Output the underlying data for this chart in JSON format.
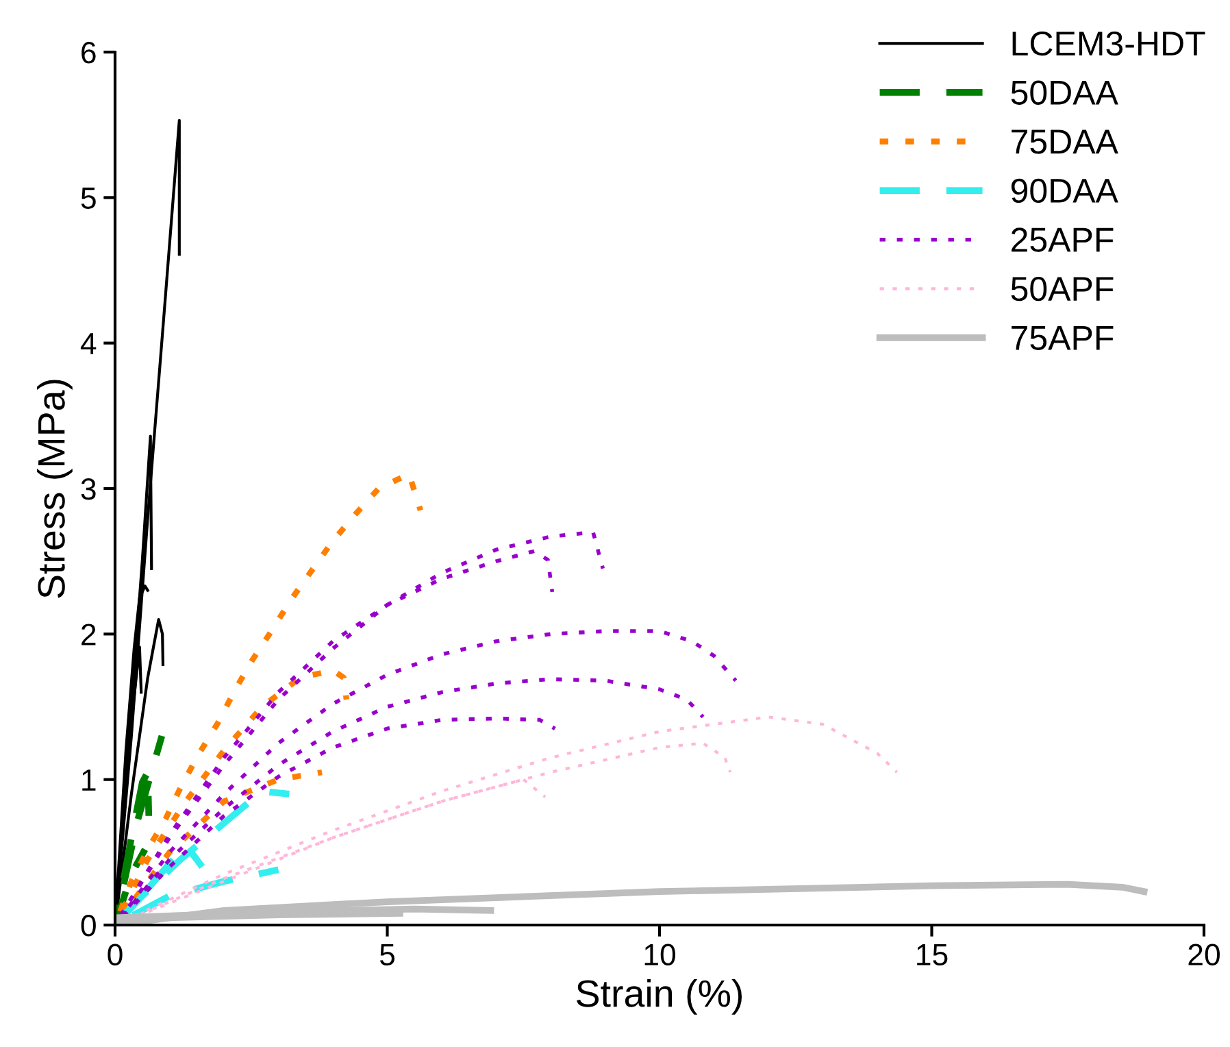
{
  "chart_data": {
    "type": "line",
    "xlabel": "Strain (%)",
    "ylabel": "Stress (MPa)",
    "xlim": [
      0,
      20
    ],
    "ylim": [
      0,
      6
    ],
    "xticks": [
      0,
      5,
      10,
      15,
      20
    ],
    "yticks": [
      0,
      1,
      2,
      3,
      4,
      5,
      6
    ],
    "grid": false,
    "legend": "top right",
    "marker": "none",
    "series": [
      {
        "name": "LCEM3-HDT",
        "color": "#000000",
        "line_style": "solid",
        "x": [
          0,
          0.3,
          0.6,
          0.9,
          1.18,
          1.18
        ],
        "values": [
          0,
          1.3,
          2.8,
          4.2,
          5.53,
          4.61
        ]
      },
      {
        "color": "#000000",
        "line_style": "solid",
        "x": [
          0,
          0.3,
          0.5,
          0.65,
          0.67
        ],
        "values": [
          0,
          1.5,
          2.5,
          3.36,
          2.45
        ]
      },
      {
        "color": "#000000",
        "line_style": "solid",
        "x": [
          0,
          0.2,
          0.35,
          0.45,
          0.55,
          0.6
        ],
        "values": [
          0,
          1.2,
          1.9,
          2.25,
          2.33,
          2.3
        ]
      },
      {
        "color": "#000000",
        "line_style": "solid",
        "x": [
          0,
          0.3,
          0.6,
          0.8,
          0.87,
          0.88
        ],
        "values": [
          0,
          0.9,
          1.7,
          2.1,
          2.0,
          1.79
        ]
      },
      {
        "color": "#000000",
        "line_style": "solid",
        "x": [
          0,
          0.3,
          0.45,
          0.48
        ],
        "values": [
          0,
          1.4,
          1.91,
          1.6
        ]
      },
      {
        "name": "50DAA",
        "color": "#008000",
        "line_style": "dashed",
        "x": [
          0,
          0.3,
          0.5,
          0.6,
          0.62
        ],
        "values": [
          0,
          0.6,
          0.98,
          1.05,
          0.75
        ]
      },
      {
        "color": "#008000",
        "line_style": "dashed",
        "x": [
          0,
          0.3,
          0.55
        ],
        "values": [
          0,
          0.35,
          0.52
        ]
      },
      {
        "color": "#008000",
        "line_style": "dashed",
        "x": [
          0,
          0.4,
          0.86
        ],
        "values": [
          0,
          0.7,
          1.3
        ]
      },
      {
        "name": "75DAA",
        "color": "#ff7f00",
        "line_style": "dotted",
        "x": [
          0,
          0.3,
          0.6,
          0.93,
          1.21,
          1.53,
          1.89,
          2.21,
          2.52,
          2.87,
          3.24,
          3.6,
          4.0,
          4.43,
          4.84,
          5.4,
          5.61
        ],
        "values": [
          0,
          0.3,
          0.52,
          0.73,
          0.95,
          1.17,
          1.39,
          1.62,
          1.82,
          2.02,
          2.24,
          2.43,
          2.64,
          2.83,
          3.0,
          3.1,
          2.85
        ]
      },
      {
        "color": "#ff7f00",
        "line_style": "dotted",
        "x": [
          0,
          0.6,
          1.3,
          2.0,
          2.7,
          3.4,
          4.0,
          4.2,
          4.25
        ],
        "values": [
          0,
          0.45,
          0.85,
          1.2,
          1.5,
          1.7,
          1.75,
          1.7,
          1.55
        ]
      },
      {
        "color": "#ff7f00",
        "line_style": "dotted",
        "x": [
          0,
          1,
          2,
          3,
          3.8
        ],
        "values": [
          0,
          0.5,
          0.85,
          1.0,
          1.05
        ]
      },
      {
        "name": "90DAA",
        "color": "#33eeee",
        "line_style": "dashed",
        "x": [
          0,
          0.5,
          1.2,
          2.0,
          2.7,
          3.2
        ],
        "values": [
          0,
          0.2,
          0.45,
          0.7,
          0.92,
          0.9
        ]
      },
      {
        "color": "#33eeee",
        "line_style": "dashed",
        "x": [
          0,
          0.6,
          1.3,
          1.5,
          1.6
        ],
        "values": [
          0,
          0.25,
          0.55,
          0.45,
          0.4
        ]
      },
      {
        "color": "#33eeee",
        "line_style": "dashed",
        "x": [
          0,
          1,
          2,
          3
        ],
        "values": [
          0,
          0.2,
          0.3,
          0.38
        ]
      },
      {
        "name": "25APF",
        "color": "#9900cc",
        "line_style": "dotted",
        "x": [
          0,
          1,
          2,
          3,
          4,
          5,
          6,
          7,
          8,
          8.78,
          8.96
        ],
        "values": [
          0,
          0.6,
          1.1,
          1.55,
          1.9,
          2.2,
          2.42,
          2.58,
          2.67,
          2.7,
          2.45
        ]
      },
      {
        "color": "#9900cc",
        "line_style": "dotted",
        "x": [
          0,
          1,
          2,
          3,
          4,
          5,
          6,
          7,
          7.7,
          7.95,
          8.03
        ],
        "values": [
          0,
          0.62,
          1.15,
          1.6,
          1.95,
          2.2,
          2.38,
          2.5,
          2.57,
          2.51,
          2.29
        ]
      },
      {
        "color": "#9900cc",
        "line_style": "dotted",
        "x": [
          0,
          1,
          2,
          3,
          4,
          5,
          6,
          7,
          8,
          9,
          10,
          10.6,
          11.0,
          11.4
        ],
        "values": [
          0,
          0.5,
          0.9,
          1.25,
          1.52,
          1.72,
          1.86,
          1.95,
          2.0,
          2.02,
          2.02,
          1.95,
          1.85,
          1.68
        ]
      },
      {
        "color": "#9900cc",
        "line_style": "dotted",
        "x": [
          0,
          1,
          2,
          3,
          4,
          5,
          6,
          7,
          8,
          9,
          10,
          10.5,
          10.8
        ],
        "values": [
          0,
          0.45,
          0.8,
          1.1,
          1.33,
          1.5,
          1.6,
          1.66,
          1.69,
          1.68,
          1.62,
          1.55,
          1.43
        ]
      },
      {
        "color": "#9900cc",
        "line_style": "dotted",
        "x": [
          0,
          1,
          2,
          3,
          4,
          5,
          6,
          7,
          7.8,
          8.08
        ],
        "values": [
          0,
          0.4,
          0.75,
          1.02,
          1.22,
          1.35,
          1.41,
          1.42,
          1.41,
          1.35
        ]
      },
      {
        "name": "50APF",
        "color": "#ffb6d9",
        "line_style": "dotted",
        "x": [
          0,
          2,
          4,
          6,
          8,
          10,
          12,
          13,
          14,
          14.36
        ],
        "values": [
          0,
          0.35,
          0.65,
          0.92,
          1.15,
          1.33,
          1.43,
          1.38,
          1.18,
          1.05
        ]
      },
      {
        "color": "#ffb6d9",
        "line_style": "dotted",
        "x": [
          0,
          2,
          4,
          6,
          8,
          10,
          10.8,
          11.2,
          11.3
        ],
        "values": [
          0,
          0.32,
          0.6,
          0.85,
          1.05,
          1.22,
          1.25,
          1.15,
          1.05
        ]
      },
      {
        "color": "#ffb6d9",
        "line_style": "dotted",
        "x": [
          0,
          2,
          4,
          6,
          7.5,
          7.9
        ],
        "values": [
          0,
          0.3,
          0.6,
          0.85,
          1.0,
          0.88
        ]
      },
      {
        "name": "75APF",
        "color": "#bdbdbd",
        "line_style": "solid",
        "x": [
          0,
          2,
          5,
          10,
          15,
          17.5,
          18.5,
          18.9
        ],
        "values": [
          0,
          0.1,
          0.16,
          0.23,
          0.27,
          0.28,
          0.26,
          0.23
        ]
      },
      {
        "color": "#bdbdbd",
        "line_style": "solid",
        "x": [
          0,
          3,
          5.5,
          6.9
        ],
        "values": [
          0.05,
          0.09,
          0.11,
          0.1
        ]
      },
      {
        "color": "#bdbdbd",
        "line_style": "solid",
        "x": [
          0,
          3,
          5.23
        ],
        "values": [
          0.04,
          0.07,
          0.08
        ]
      }
    ]
  }
}
